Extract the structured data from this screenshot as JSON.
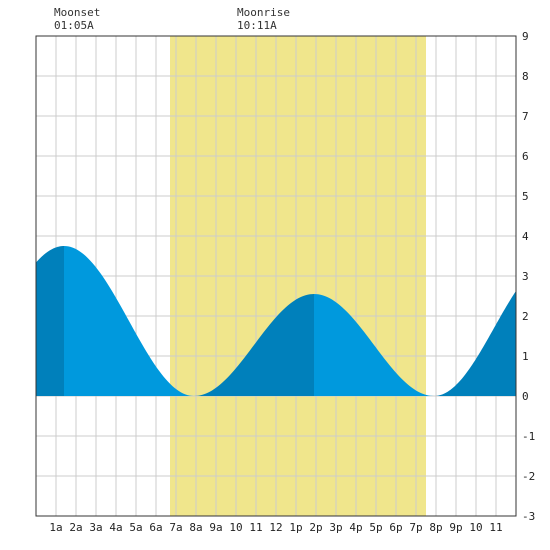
{
  "annotations": {
    "moonset": {
      "label": "Moonset",
      "time": "01:05A"
    },
    "moonrise": {
      "label": "Moonrise",
      "time": "10:11A"
    }
  },
  "chart_data": {
    "type": "area",
    "title": "",
    "xlabel": "",
    "ylabel": "",
    "xlim": [
      0,
      24
    ],
    "ylim": [
      -3,
      9
    ],
    "grid": true,
    "x_tick_labels": [
      "1a",
      "2a",
      "3a",
      "4a",
      "5a",
      "6a",
      "7a",
      "8a",
      "9a",
      "10",
      "11",
      "12",
      "1p",
      "2p",
      "3p",
      "4p",
      "5p",
      "6p",
      "7p",
      "8p",
      "9p",
      "10",
      "11"
    ],
    "y_tick_labels": [
      "9",
      "8",
      "7",
      "6",
      "5",
      "4",
      "3",
      "2",
      "1",
      "0",
      "-1",
      "-2",
      "-3"
    ],
    "daylight_hours": [
      6.7,
      19.5
    ],
    "colors": {
      "daylight": "#f0e68c",
      "tide_light": "#0099dd",
      "tide_dark": "#0080bb",
      "grid": "#cccccc"
    },
    "tide_extremes": [
      {
        "x": 1.4,
        "y": 3.75
      },
      {
        "x": 7.9,
        "y": 0.0
      },
      {
        "x": 13.9,
        "y": 2.55
      },
      {
        "x": 19.9,
        "y": 0.0
      },
      {
        "x": 25.9,
        "y": 3.4
      }
    ]
  }
}
